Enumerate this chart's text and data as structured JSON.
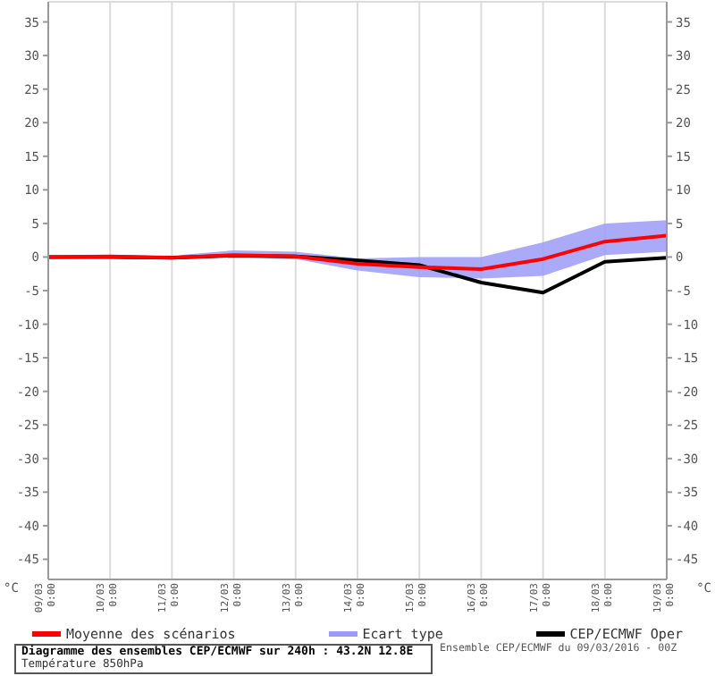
{
  "chart_data": {
    "type": "line",
    "title": "Diagramme des ensembles CEP/ECMWF sur 240h : 43.2N 12.8E",
    "subtitle": "Température 850hPa",
    "ylabel": "°C",
    "y2label": "°C",
    "annotations": [
      "Ensemble CEP/ECMWF du 09/03/2016 - 00Z"
    ],
    "categories": [
      "09/03 0:00",
      "10/03 0:00",
      "11/03 0:00",
      "12/03 0:00",
      "13/03 0:00",
      "14/03 0:00",
      "15/03 0:00",
      "16/03 0:00",
      "17/03 0:00",
      "18/03 0:00",
      "19/03 0:00"
    ],
    "series": [
      {
        "name": "Moyenne des scénarios",
        "color": "#ff0000",
        "values": [
          0,
          0.1,
          -0.1,
          0.3,
          0.1,
          -1,
          -1.5,
          -1.8,
          -0.3,
          2.3,
          3.2
        ]
      },
      {
        "name": "Ecart type",
        "type": "area",
        "color": "#9b9bf7",
        "values": [
          null,
          null,
          null,
          null,
          null,
          null,
          null,
          null,
          null,
          null,
          null
        ],
        "lower": [
          -0.2,
          -0.1,
          -0.3,
          0,
          -0.3,
          -2,
          -3,
          -3.2,
          -2.8,
          0.3,
          0.8
        ],
        "upper": [
          0.2,
          0.3,
          0.2,
          1,
          0.8,
          -0.2,
          0,
          0,
          2.2,
          5,
          5.5
        ]
      },
      {
        "name": "CEP/ECMWF Oper",
        "color": "#000000",
        "values": [
          0,
          0,
          -0.1,
          0.2,
          0.1,
          -0.5,
          -1.2,
          -3.8,
          -5.3,
          -0.7,
          -0.1
        ]
      }
    ],
    "ylim": [
      -48,
      38
    ],
    "yticks": [
      -45,
      -40,
      -35,
      -30,
      -25,
      -20,
      -15,
      -10,
      -5,
      0,
      5,
      10,
      15,
      20,
      25,
      30,
      35
    ],
    "y2lim": [
      -48,
      38
    ],
    "y2ticks": [
      -45,
      -40,
      -35,
      -30,
      -25,
      -20,
      -15,
      -10,
      -5,
      0,
      5,
      10,
      15,
      20,
      25,
      30,
      35
    ],
    "grid": true,
    "legend": "bottom",
    "marker": "none",
    "line_style": "solid"
  }
}
